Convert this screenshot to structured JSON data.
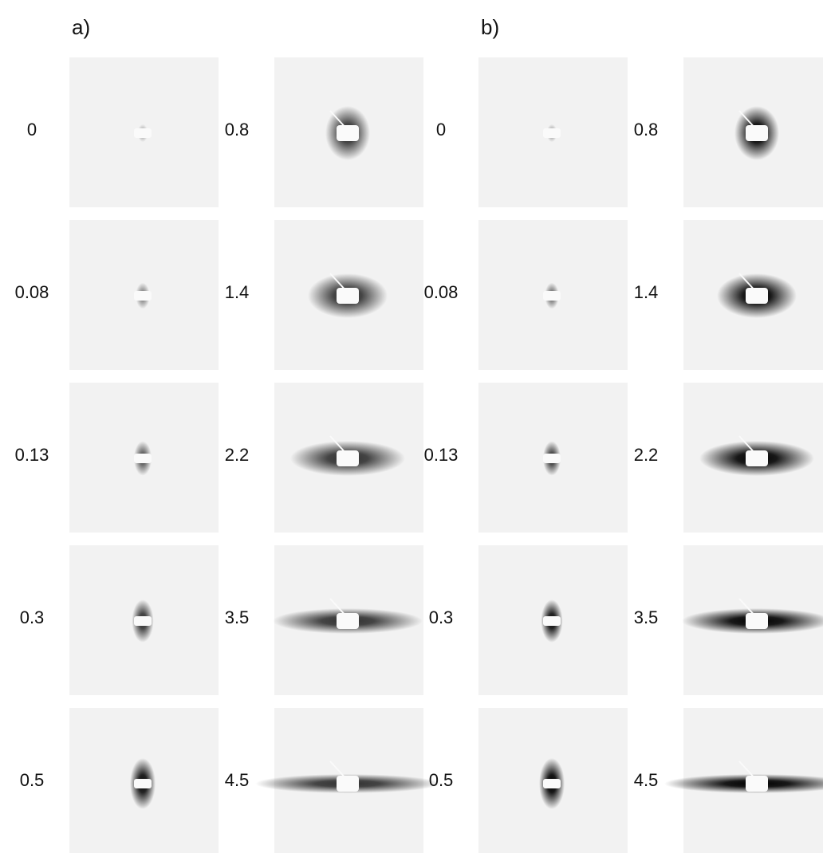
{
  "panels": [
    {
      "label": "a)",
      "columns": [
        [
          "0",
          "0.08",
          "0.13",
          "0.3",
          "0.5"
        ],
        [
          "0.8",
          "1.4",
          "2.2",
          "3.5",
          "4.5"
        ]
      ]
    },
    {
      "label": "b)",
      "columns": [
        [
          "0",
          "0.08",
          "0.13",
          "0.3",
          "0.5"
        ],
        [
          "0.8",
          "1.4",
          "2.2",
          "3.5",
          "4.5"
        ]
      ]
    }
  ]
}
